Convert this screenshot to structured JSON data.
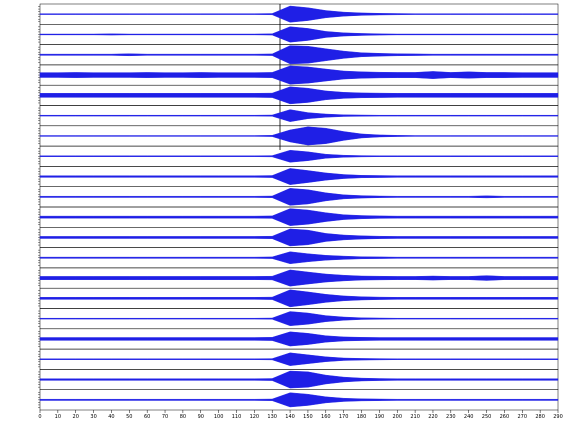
{
  "chart_data": {
    "type": "seismogram",
    "color": "#1f1fe6",
    "xlim": [
      0,
      290
    ],
    "xticks": [
      0,
      10,
      20,
      30,
      40,
      50,
      60,
      70,
      80,
      90,
      100,
      110,
      120,
      130,
      140,
      150,
      160,
      170,
      180,
      190,
      200,
      210,
      220,
      230,
      240,
      250,
      260,
      270,
      280,
      290
    ],
    "x": [
      0,
      10,
      20,
      30,
      40,
      50,
      60,
      70,
      80,
      90,
      100,
      110,
      120,
      130,
      140,
      150,
      160,
      170,
      180,
      190,
      200,
      210,
      220,
      230,
      240,
      250,
      260,
      270,
      280,
      290
    ],
    "series": [
      {
        "values": [
          0.02,
          0.02,
          0.02,
          0.02,
          0.02,
          0.02,
          0.02,
          0.02,
          0.02,
          0.02,
          0.02,
          0.02,
          0.02,
          0.03,
          0.4,
          0.32,
          0.18,
          0.1,
          0.06,
          0.04,
          0.03,
          0.02,
          0.02,
          0.02,
          0.02,
          0.02,
          0.02,
          0.02,
          0.02,
          0.02
        ]
      },
      {
        "values": [
          0.02,
          0.02,
          0.02,
          0.02,
          0.03,
          0.02,
          0.02,
          0.02,
          0.02,
          0.02,
          0.02,
          0.02,
          0.02,
          0.03,
          0.38,
          0.3,
          0.15,
          0.08,
          0.05,
          0.03,
          0.02,
          0.02,
          0.02,
          0.02,
          0.02,
          0.02,
          0.02,
          0.02,
          0.02,
          0.02
        ]
      },
      {
        "values": [
          0.03,
          0.03,
          0.03,
          0.03,
          0.03,
          0.05,
          0.03,
          0.03,
          0.03,
          0.03,
          0.03,
          0.03,
          0.03,
          0.04,
          0.45,
          0.42,
          0.3,
          0.18,
          0.1,
          0.07,
          0.05,
          0.04,
          0.03,
          0.03,
          0.03,
          0.03,
          0.03,
          0.03,
          0.03,
          0.03
        ]
      },
      {
        "values": [
          0.12,
          0.12,
          0.13,
          0.12,
          0.12,
          0.12,
          0.13,
          0.12,
          0.12,
          0.13,
          0.12,
          0.12,
          0.12,
          0.13,
          0.45,
          0.4,
          0.3,
          0.2,
          0.16,
          0.14,
          0.13,
          0.13,
          0.18,
          0.13,
          0.16,
          0.13,
          0.13,
          0.12,
          0.12,
          0.12
        ]
      },
      {
        "values": [
          0.1,
          0.1,
          0.1,
          0.1,
          0.1,
          0.1,
          0.1,
          0.1,
          0.1,
          0.1,
          0.1,
          0.1,
          0.1,
          0.11,
          0.42,
          0.35,
          0.22,
          0.15,
          0.12,
          0.11,
          0.1,
          0.1,
          0.1,
          0.1,
          0.1,
          0.1,
          0.1,
          0.1,
          0.1,
          0.1
        ]
      },
      {
        "values": [
          0.02,
          0.02,
          0.02,
          0.02,
          0.02,
          0.02,
          0.02,
          0.02,
          0.02,
          0.02,
          0.02,
          0.02,
          0.02,
          0.03,
          0.3,
          0.15,
          0.08,
          0.04,
          0.03,
          0.02,
          0.02,
          0.02,
          0.02,
          0.02,
          0.02,
          0.02,
          0.02,
          0.02,
          0.02,
          0.02
        ]
      },
      {
        "values": [
          0.02,
          0.02,
          0.02,
          0.02,
          0.02,
          0.02,
          0.02,
          0.02,
          0.02,
          0.02,
          0.02,
          0.02,
          0.02,
          0.03,
          0.3,
          0.45,
          0.38,
          0.22,
          0.1,
          0.05,
          0.03,
          0.02,
          0.02,
          0.02,
          0.02,
          0.02,
          0.02,
          0.02,
          0.02,
          0.02
        ]
      },
      {
        "values": [
          0.02,
          0.02,
          0.02,
          0.02,
          0.02,
          0.02,
          0.02,
          0.02,
          0.02,
          0.02,
          0.02,
          0.02,
          0.02,
          0.03,
          0.3,
          0.22,
          0.1,
          0.05,
          0.03,
          0.02,
          0.02,
          0.02,
          0.02,
          0.02,
          0.02,
          0.02,
          0.02,
          0.02,
          0.02,
          0.02
        ]
      },
      {
        "values": [
          0.04,
          0.04,
          0.04,
          0.04,
          0.04,
          0.04,
          0.04,
          0.04,
          0.04,
          0.04,
          0.04,
          0.04,
          0.04,
          0.05,
          0.4,
          0.3,
          0.18,
          0.1,
          0.06,
          0.05,
          0.04,
          0.04,
          0.04,
          0.04,
          0.04,
          0.04,
          0.04,
          0.04,
          0.04,
          0.04
        ]
      },
      {
        "values": [
          0.03,
          0.03,
          0.03,
          0.03,
          0.03,
          0.03,
          0.03,
          0.03,
          0.03,
          0.03,
          0.03,
          0.03,
          0.03,
          0.04,
          0.42,
          0.35,
          0.2,
          0.1,
          0.06,
          0.04,
          0.03,
          0.03,
          0.03,
          0.03,
          0.03,
          0.05,
          0.03,
          0.03,
          0.03,
          0.03
        ]
      },
      {
        "values": [
          0.05,
          0.05,
          0.05,
          0.05,
          0.05,
          0.05,
          0.05,
          0.05,
          0.05,
          0.05,
          0.05,
          0.05,
          0.05,
          0.06,
          0.42,
          0.35,
          0.22,
          0.12,
          0.08,
          0.06,
          0.05,
          0.05,
          0.05,
          0.05,
          0.05,
          0.05,
          0.05,
          0.05,
          0.05,
          0.05
        ]
      },
      {
        "values": [
          0.05,
          0.05,
          0.05,
          0.05,
          0.05,
          0.05,
          0.05,
          0.05,
          0.05,
          0.05,
          0.05,
          0.05,
          0.05,
          0.06,
          0.42,
          0.36,
          0.2,
          0.12,
          0.08,
          0.06,
          0.05,
          0.05,
          0.05,
          0.05,
          0.05,
          0.05,
          0.05,
          0.05,
          0.05,
          0.05
        ]
      },
      {
        "values": [
          0.03,
          0.03,
          0.03,
          0.03,
          0.03,
          0.03,
          0.03,
          0.03,
          0.03,
          0.03,
          0.03,
          0.03,
          0.03,
          0.04,
          0.3,
          0.2,
          0.12,
          0.08,
          0.05,
          0.04,
          0.03,
          0.03,
          0.03,
          0.03,
          0.03,
          0.03,
          0.03,
          0.03,
          0.03,
          0.03
        ]
      },
      {
        "values": [
          0.08,
          0.08,
          0.08,
          0.08,
          0.08,
          0.08,
          0.08,
          0.08,
          0.08,
          0.08,
          0.08,
          0.08,
          0.08,
          0.09,
          0.4,
          0.3,
          0.2,
          0.14,
          0.1,
          0.09,
          0.08,
          0.08,
          0.1,
          0.08,
          0.08,
          0.12,
          0.08,
          0.08,
          0.08,
          0.08
        ]
      },
      {
        "values": [
          0.05,
          0.05,
          0.05,
          0.05,
          0.05,
          0.05,
          0.05,
          0.05,
          0.05,
          0.05,
          0.05,
          0.05,
          0.05,
          0.06,
          0.42,
          0.32,
          0.2,
          0.12,
          0.08,
          0.06,
          0.05,
          0.05,
          0.05,
          0.05,
          0.05,
          0.05,
          0.05,
          0.05,
          0.05,
          0.05
        ]
      },
      {
        "values": [
          0.02,
          0.02,
          0.02,
          0.02,
          0.02,
          0.02,
          0.02,
          0.02,
          0.02,
          0.02,
          0.02,
          0.02,
          0.02,
          0.03,
          0.35,
          0.28,
          0.15,
          0.08,
          0.04,
          0.03,
          0.02,
          0.02,
          0.02,
          0.02,
          0.02,
          0.02,
          0.02,
          0.02,
          0.02,
          0.02
        ]
      },
      {
        "values": [
          0.07,
          0.07,
          0.07,
          0.07,
          0.07,
          0.07,
          0.07,
          0.07,
          0.07,
          0.07,
          0.07,
          0.07,
          0.07,
          0.08,
          0.35,
          0.28,
          0.16,
          0.1,
          0.08,
          0.07,
          0.07,
          0.07,
          0.07,
          0.07,
          0.07,
          0.07,
          0.07,
          0.07,
          0.07,
          0.07
        ]
      },
      {
        "values": [
          0.02,
          0.02,
          0.02,
          0.02,
          0.02,
          0.02,
          0.02,
          0.02,
          0.02,
          0.02,
          0.02,
          0.02,
          0.02,
          0.03,
          0.32,
          0.22,
          0.12,
          0.06,
          0.04,
          0.03,
          0.02,
          0.02,
          0.02,
          0.02,
          0.02,
          0.02,
          0.02,
          0.02,
          0.02,
          0.02
        ]
      },
      {
        "values": [
          0.04,
          0.04,
          0.04,
          0.04,
          0.04,
          0.04,
          0.04,
          0.04,
          0.04,
          0.04,
          0.04,
          0.04,
          0.04,
          0.05,
          0.42,
          0.38,
          0.22,
          0.12,
          0.07,
          0.05,
          0.04,
          0.04,
          0.04,
          0.04,
          0.04,
          0.04,
          0.04,
          0.04,
          0.04,
          0.04
        ]
      },
      {
        "values": [
          0.03,
          0.03,
          0.03,
          0.03,
          0.03,
          0.03,
          0.03,
          0.03,
          0.03,
          0.03,
          0.03,
          0.03,
          0.03,
          0.04,
          0.35,
          0.28,
          0.15,
          0.08,
          0.05,
          0.04,
          0.03,
          0.03,
          0.03,
          0.03,
          0.03,
          0.03,
          0.03,
          0.03,
          0.03,
          0.03
        ]
      }
    ]
  }
}
